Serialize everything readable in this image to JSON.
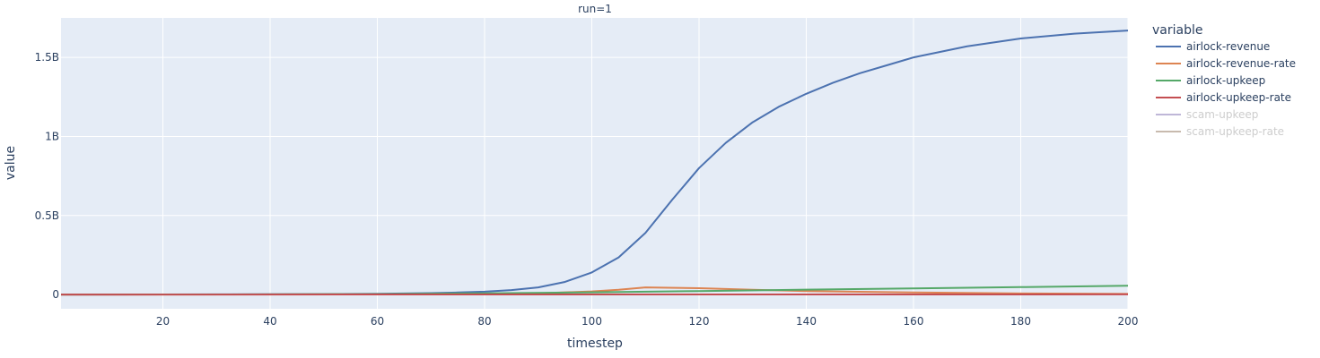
{
  "chart_data": {
    "type": "line",
    "title": "run=1",
    "xlabel": "timestep",
    "ylabel": "value",
    "xlim": [
      1,
      200
    ],
    "ylim": [
      -0.09,
      1.75
    ],
    "x_ticks": [
      20,
      40,
      60,
      80,
      100,
      120,
      140,
      160,
      180,
      200
    ],
    "y_ticks": [
      {
        "value": 0,
        "label": "0"
      },
      {
        "value": 0.5,
        "label": "0.5B"
      },
      {
        "value": 1.0,
        "label": "1B"
      },
      {
        "value": 1.5,
        "label": "1.5B"
      }
    ],
    "y_unit": "billions",
    "grid": true,
    "plot_bg": "#e5ecf6",
    "grid_color": "#ffffff",
    "legend": {
      "title": "variable",
      "placement": "right"
    },
    "series": [
      {
        "name": "airlock-revenue",
        "color": "#4c72b0",
        "visible": true,
        "points": [
          [
            1,
            0
          ],
          [
            10,
            0
          ],
          [
            20,
            0.0005
          ],
          [
            30,
            0.001
          ],
          [
            40,
            0.002
          ],
          [
            50,
            0.003
          ],
          [
            60,
            0.005
          ],
          [
            65,
            0.007
          ],
          [
            70,
            0.009
          ],
          [
            75,
            0.013
          ],
          [
            80,
            0.018
          ],
          [
            85,
            0.028
          ],
          [
            90,
            0.045
          ],
          [
            95,
            0.08
          ],
          [
            100,
            0.14
          ],
          [
            105,
            0.235
          ],
          [
            110,
            0.39
          ],
          [
            115,
            0.6
          ],
          [
            120,
            0.8
          ],
          [
            125,
            0.96
          ],
          [
            130,
            1.09
          ],
          [
            135,
            1.19
          ],
          [
            140,
            1.27
          ],
          [
            145,
            1.34
          ],
          [
            150,
            1.4
          ],
          [
            155,
            1.45
          ],
          [
            160,
            1.5
          ],
          [
            170,
            1.57
          ],
          [
            180,
            1.62
          ],
          [
            190,
            1.65
          ],
          [
            200,
            1.67
          ]
        ]
      },
      {
        "name": "airlock-revenue-rate",
        "color": "#dd8452",
        "visible": true,
        "points": [
          [
            1,
            0
          ],
          [
            50,
            0.001
          ],
          [
            70,
            0.002
          ],
          [
            80,
            0.004
          ],
          [
            90,
            0.008
          ],
          [
            100,
            0.02
          ],
          [
            105,
            0.03
          ],
          [
            110,
            0.045
          ],
          [
            120,
            0.04
          ],
          [
            130,
            0.03
          ],
          [
            140,
            0.022
          ],
          [
            160,
            0.013
          ],
          [
            180,
            0.007
          ],
          [
            200,
            0.004
          ]
        ]
      },
      {
        "name": "airlock-upkeep",
        "color": "#55a868",
        "visible": true,
        "points": [
          [
            1,
            0
          ],
          [
            40,
            0.001
          ],
          [
            60,
            0.003
          ],
          [
            80,
            0.008
          ],
          [
            100,
            0.014
          ],
          [
            120,
            0.022
          ],
          [
            140,
            0.031
          ],
          [
            160,
            0.039
          ],
          [
            180,
            0.047
          ],
          [
            200,
            0.056
          ]
        ]
      },
      {
        "name": "airlock-upkeep-rate",
        "color": "#c44e52",
        "visible": true,
        "points": [
          [
            1,
            0
          ],
          [
            100,
            0.0005
          ],
          [
            150,
            0.0008
          ],
          [
            200,
            0.001
          ]
        ]
      },
      {
        "name": "scam-upkeep",
        "color": "#8172b2",
        "visible": false,
        "points": []
      },
      {
        "name": "scam-upkeep-rate",
        "color": "#937860",
        "visible": false,
        "points": []
      }
    ]
  }
}
